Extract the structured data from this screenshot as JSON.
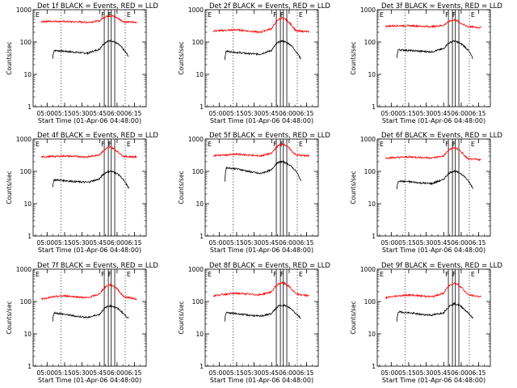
{
  "ylabel": "Counts/sec",
  "xlabel": "Start Time (01-Apr-06 04:48:00)",
  "yticks": [
    {
      "label": "1",
      "value": 1
    },
    {
      "label": "10",
      "value": 10
    },
    {
      "label": "100",
      "value": 100
    },
    {
      "label": "1000",
      "value": 1000
    }
  ],
  "xticks": [
    "05:00",
    "05:15",
    "05:30",
    "05:45",
    "06:00",
    "06:15"
  ],
  "colors": {
    "events": "#000000",
    "lld": "#ff0000"
  },
  "chart_data": [
    {
      "type": "line",
      "title": "Det 1f BLACK = Events, RED = LLD",
      "x_minutes": [
        0,
        5,
        15,
        25,
        35,
        45,
        48,
        51,
        54,
        57,
        60,
        63,
        66,
        70
      ],
      "x_display": [
        "04:55",
        "05:00",
        "05:10",
        "05:20",
        "05:30",
        "05:40",
        "05:43",
        "05:46",
        "05:49",
        "05:52",
        "05:55",
        "05:58",
        "06:01",
        "06:05"
      ],
      "xlim": [
        "04:48",
        "06:25"
      ],
      "ylim": [
        1,
        1000
      ],
      "yscale": "log",
      "series": [
        {
          "name": "Events",
          "x": [
            5,
            6,
            15,
            25,
            35,
            45,
            48,
            51,
            54,
            57,
            60,
            63,
            66,
            70
          ],
          "y": [
            38,
            55,
            52,
            48,
            45,
            60,
            85,
            102,
            110,
            105,
            90,
            75,
            55,
            35
          ]
        },
        {
          "name": "LLD",
          "x": [
            -5,
            6,
            15,
            25,
            35,
            45,
            48,
            51,
            54,
            57,
            60,
            63,
            66,
            77
          ],
          "y": [
            430,
            440,
            430,
            420,
            410,
            450,
            560,
            620,
            650,
            630,
            560,
            480,
            420,
            410
          ]
        }
      ],
      "labels": {
        "left_F": "F",
        "right_F": "F",
        "E": "E"
      }
    },
    {
      "type": "line",
      "title": "Det 2f BLACK = Events, RED = LLD",
      "series": [
        {
          "name": "Events",
          "x": [
            5,
            6,
            15,
            25,
            35,
            45,
            48,
            51,
            54,
            57,
            60,
            63,
            66,
            70
          ],
          "y": [
            35,
            52,
            48,
            44,
            42,
            55,
            80,
            100,
            108,
            100,
            88,
            70,
            50,
            30
          ]
        },
        {
          "name": "LLD",
          "x": [
            -5,
            6,
            15,
            25,
            35,
            45,
            48,
            51,
            54,
            57,
            60,
            63,
            66,
            77
          ],
          "y": [
            220,
            230,
            240,
            220,
            200,
            260,
            380,
            500,
            560,
            500,
            400,
            300,
            220,
            210
          ]
        }
      ]
    },
    {
      "type": "line",
      "title": "Det 3f BLACK = Events, RED = LLD",
      "series": [
        {
          "name": "Events",
          "x": [
            5,
            6,
            15,
            25,
            35,
            45,
            48,
            51,
            54,
            57,
            60,
            63,
            66,
            70
          ],
          "y": [
            40,
            58,
            55,
            52,
            50,
            62,
            85,
            100,
            108,
            100,
            88,
            72,
            55,
            30
          ]
        },
        {
          "name": "LLD",
          "x": [
            -5,
            6,
            15,
            25,
            35,
            45,
            48,
            51,
            54,
            57,
            60,
            63,
            66,
            77
          ],
          "y": [
            310,
            320,
            320,
            310,
            300,
            330,
            400,
            460,
            480,
            440,
            380,
            330,
            300,
            280
          ]
        }
      ]
    },
    {
      "type": "line",
      "title": "Det 4f BLACK = Events, RED = LLD",
      "series": [
        {
          "name": "Events",
          "x": [
            5,
            6,
            15,
            25,
            35,
            45,
            48,
            51,
            54,
            57,
            60,
            63,
            66,
            70
          ],
          "y": [
            40,
            55,
            52,
            48,
            46,
            58,
            80,
            95,
            102,
            95,
            85,
            70,
            50,
            30
          ]
        },
        {
          "name": "LLD",
          "x": [
            -5,
            6,
            15,
            25,
            35,
            45,
            48,
            51,
            54,
            57,
            60,
            63,
            66,
            77
          ],
          "y": [
            280,
            290,
            300,
            290,
            280,
            330,
            420,
            520,
            560,
            510,
            420,
            340,
            290,
            280
          ]
        }
      ]
    },
    {
      "type": "line",
      "title": "Det 5f BLACK = Events, RED = LLD",
      "series": [
        {
          "name": "Events",
          "x": [
            5,
            6,
            15,
            25,
            35,
            45,
            48,
            51,
            54,
            57,
            60,
            63,
            66,
            70
          ],
          "y": [
            60,
            130,
            120,
            100,
            85,
            110,
            160,
            190,
            200,
            185,
            160,
            130,
            100,
            50
          ]
        },
        {
          "name": "LLD",
          "x": [
            -5,
            6,
            15,
            25,
            35,
            45,
            48,
            51,
            54,
            57,
            60,
            63,
            66,
            77
          ],
          "y": [
            310,
            320,
            340,
            320,
            300,
            360,
            500,
            640,
            700,
            640,
            520,
            400,
            320,
            300
          ]
        }
      ]
    },
    {
      "type": "line",
      "title": "Det 6f BLACK = Events, RED = LLD",
      "series": [
        {
          "name": "Events",
          "x": [
            5,
            6,
            15,
            25,
            35,
            45,
            48,
            51,
            54,
            57,
            60,
            63,
            66,
            70
          ],
          "y": [
            35,
            50,
            48,
            44,
            42,
            56,
            78,
            95,
            102,
            95,
            84,
            68,
            50,
            30
          ]
        },
        {
          "name": "LLD",
          "x": [
            -5,
            6,
            15,
            25,
            35,
            45,
            48,
            51,
            54,
            57,
            60,
            63,
            66,
            77
          ],
          "y": [
            260,
            270,
            280,
            270,
            260,
            300,
            400,
            500,
            540,
            490,
            400,
            300,
            240,
            230
          ]
        }
      ]
    },
    {
      "type": "line",
      "title": "Det 7f BLACK = Events, RED = LLD",
      "series": [
        {
          "name": "Events",
          "x": [
            5,
            6,
            15,
            25,
            35,
            45,
            48,
            51,
            54,
            57,
            60,
            63,
            66,
            70
          ],
          "y": [
            30,
            45,
            40,
            35,
            32,
            40,
            55,
            68,
            74,
            70,
            62,
            52,
            40,
            30
          ]
        },
        {
          "name": "LLD",
          "x": [
            -5,
            6,
            15,
            25,
            35,
            45,
            48,
            51,
            54,
            57,
            60,
            63,
            66,
            77
          ],
          "y": [
            120,
            140,
            150,
            140,
            130,
            170,
            240,
            300,
            330,
            300,
            250,
            180,
            140,
            120
          ]
        }
      ]
    },
    {
      "type": "line",
      "title": "Det 8f BLACK = Events, RED = LLD",
      "series": [
        {
          "name": "Events",
          "x": [
            5,
            6,
            15,
            25,
            35,
            45,
            48,
            51,
            54,
            57,
            60,
            63,
            66,
            70
          ],
          "y": [
            30,
            45,
            42,
            38,
            35,
            42,
            58,
            72,
            78,
            74,
            65,
            54,
            42,
            30
          ]
        },
        {
          "name": "LLD",
          "x": [
            -5,
            6,
            15,
            25,
            35,
            45,
            48,
            51,
            54,
            57,
            60,
            63,
            66,
            77
          ],
          "y": [
            150,
            170,
            180,
            170,
            160,
            200,
            280,
            350,
            380,
            350,
            290,
            220,
            170,
            150
          ]
        }
      ]
    },
    {
      "type": "line",
      "title": "Det 9f BLACK = Events, RED = LLD",
      "series": [
        {
          "name": "Events",
          "x": [
            5,
            6,
            15,
            25,
            35,
            45,
            48,
            51,
            54,
            57,
            60,
            63,
            66,
            70
          ],
          "y": [
            30,
            48,
            45,
            40,
            38,
            45,
            62,
            78,
            85,
            80,
            70,
            56,
            44,
            30
          ]
        },
        {
          "name": "LLD",
          "x": [
            -5,
            6,
            15,
            25,
            35,
            45,
            48,
            51,
            54,
            57,
            60,
            63,
            66,
            77
          ],
          "y": [
            130,
            150,
            160,
            150,
            140,
            180,
            260,
            340,
            370,
            340,
            280,
            210,
            160,
            140
          ]
        }
      ]
    }
  ],
  "markers": {
    "dotted_minutes": [
      12,
      67
    ],
    "solid_minutes": [
      49,
      52.5,
      55,
      58
    ],
    "F_minutes": [
      50,
      56
    ],
    "E_minutes": [
      68
    ],
    "left_E_minute": -2.5
  }
}
